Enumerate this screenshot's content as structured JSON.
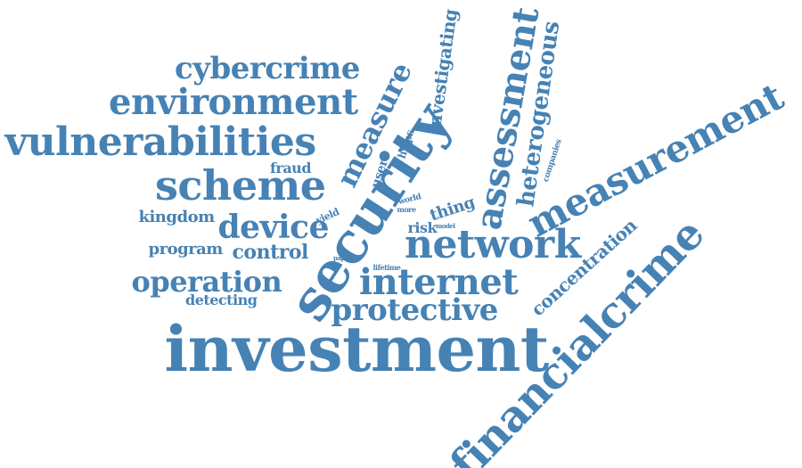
{
  "color": "#4682b4",
  "words": [
    {
      "text": "investment"
    },
    {
      "text": "security"
    },
    {
      "text": "financialcrime"
    },
    {
      "text": "measurement"
    },
    {
      "text": "vulnerabilities"
    },
    {
      "text": "scheme"
    },
    {
      "text": "environment"
    },
    {
      "text": "cybercrime"
    },
    {
      "text": "network"
    },
    {
      "text": "internet"
    },
    {
      "text": "assessment"
    },
    {
      "text": "protective"
    },
    {
      "text": "device"
    },
    {
      "text": "operation"
    },
    {
      "text": "measure"
    },
    {
      "text": "heterogeneous"
    },
    {
      "text": "concentration"
    },
    {
      "text": "investigating"
    },
    {
      "text": "kingdom"
    },
    {
      "text": "program"
    },
    {
      "text": "control"
    },
    {
      "text": "thing"
    },
    {
      "text": "fraud"
    },
    {
      "text": "detecting"
    },
    {
      "text": "risk"
    },
    {
      "text": "user"
    },
    {
      "text": "hyips"
    },
    {
      "text": "companies"
    },
    {
      "text": "yield"
    },
    {
      "text": "world"
    },
    {
      "text": "more"
    },
    {
      "text": "model"
    },
    {
      "text": "paper"
    },
    {
      "text": "lifetime"
    }
  ]
}
